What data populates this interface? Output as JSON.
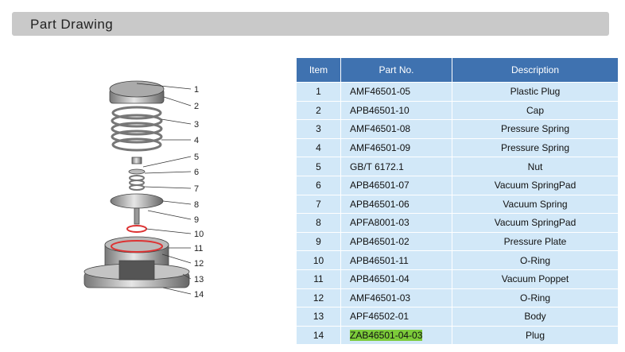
{
  "header": {
    "title": "Part Drawing"
  },
  "drawing": {
    "callouts": [
      "1",
      "2",
      "3",
      "4",
      "5",
      "6",
      "7",
      "8",
      "9",
      "10",
      "11",
      "12",
      "13",
      "14"
    ]
  },
  "table": {
    "columns": [
      "Item",
      "Part No.",
      "Description"
    ],
    "rows": [
      [
        "1",
        "AMF46501-05",
        "Plastic Plug"
      ],
      [
        "2",
        "APB46501-10",
        "Cap"
      ],
      [
        "3",
        "AMF46501-08",
        "Pressure Spring"
      ],
      [
        "4",
        "AMF46501-09",
        "Pressure Spring"
      ],
      [
        "5",
        "GB/T 6172.1",
        "Nut"
      ],
      [
        "6",
        "APB46501-07",
        "Vacuum SpringPad"
      ],
      [
        "7",
        "APB46501-06",
        "Vacuum Spring"
      ],
      [
        "8",
        "APFA8001-03",
        "Vacuum SpringPad"
      ],
      [
        "9",
        "APB46501-02",
        "Pressure Plate"
      ],
      [
        "10",
        "APB46501-11",
        "O-Ring"
      ],
      [
        "11",
        "APB46501-04",
        "Vacuum Poppet"
      ],
      [
        "12",
        "AMF46501-03",
        "O-Ring"
      ],
      [
        "13",
        "APF46502-01",
        "Body"
      ],
      [
        "14",
        "ZAB46501-04-03",
        "Plug"
      ]
    ]
  }
}
